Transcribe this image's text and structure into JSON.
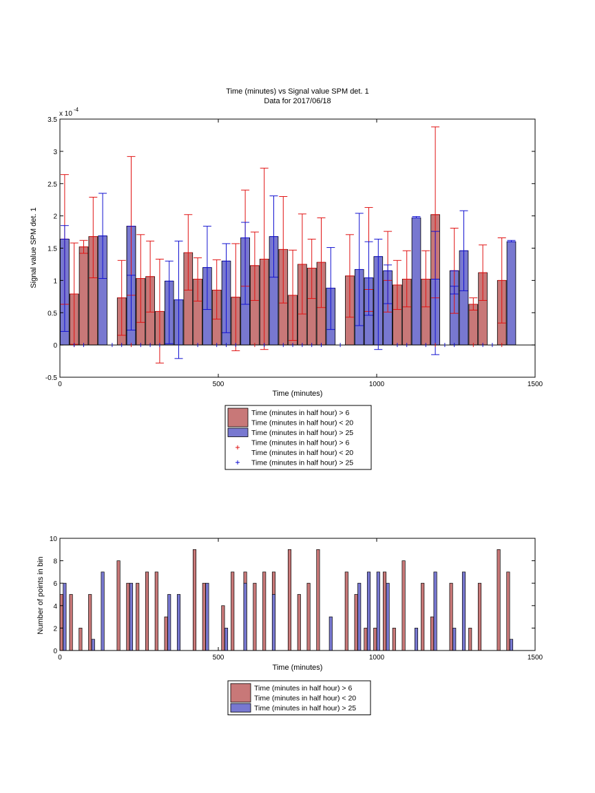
{
  "colors": {
    "red_bar": "#c87878",
    "blue_bar": "#7878d0",
    "red_err": "#e01010",
    "blue_err": "#1010d0"
  },
  "chart_data": [
    {
      "type": "bar",
      "title": "Time (minutes) vs Signal value SPM det. 1",
      "subtitle": "Data for 2017/06/18",
      "xlabel": "Time (minutes)",
      "ylabel": "Signal value SPM det. 1",
      "exponent_label": "x 10",
      "exponent_power": "-4",
      "xlim": [
        0,
        1500
      ],
      "ylim": [
        -0.5,
        3.5
      ],
      "xticks": [
        "0",
        "500",
        "1000",
        "1500"
      ],
      "yticks": [
        "-0.5",
        "0",
        "0.5",
        "1",
        "1.5",
        "2",
        "2.5",
        "3",
        "3.5"
      ],
      "legend": {
        "placement": "below",
        "entries": [
          {
            "kind": "bar",
            "color": "red",
            "lines": [
              "Time (minutes in half hour) > 6",
              "Time (minutes in half hour) < 20"
            ]
          },
          {
            "kind": "bar",
            "color": "blue",
            "lines": [
              "Time (minutes in half hour) > 25"
            ]
          },
          {
            "kind": "marker",
            "color": "red",
            "lines": [
              "Time (minutes in half hour) > 6",
              "Time (minutes in half hour) < 20"
            ]
          },
          {
            "kind": "marker",
            "color": "blue",
            "lines": [
              "Time (minutes in half hour) > 25"
            ]
          }
        ]
      },
      "series": [
        {
          "color": "red",
          "x": [
            15,
            45,
            75,
            105,
            195,
            225,
            255,
            285,
            315,
            405,
            435,
            495,
            555,
            585,
            615,
            645,
            705,
            735,
            765,
            795,
            825,
            915,
            975,
            1035,
            1065,
            1095,
            1155,
            1185,
            1245,
            1305,
            1335,
            1395
          ],
          "values": [
            1.64,
            0.79,
            1.52,
            1.68,
            0.73,
            1.84,
            1.03,
            1.06,
            0.52,
            1.43,
            1.02,
            0.85,
            0.74,
            1.66,
            1.23,
            1.33,
            1.48,
            0.77,
            1.25,
            1.19,
            1.28,
            1.07,
            0.86,
            1.0,
            0.93,
            1.02,
            1.02,
            2.02,
            1.15,
            0.63,
            1.12,
            1.0
          ],
          "err_low": [
            0.63,
            0.01,
            1.42,
            1.04,
            0.15,
            0.77,
            0.35,
            0.51,
            -0.28,
            0.85,
            0.68,
            0.4,
            -0.09,
            0.91,
            0.69,
            -0.07,
            0.65,
            0.07,
            0.48,
            0.72,
            0.58,
            0.43,
            0.52,
            0.51,
            0.55,
            0.59,
            0.59,
            0.73,
            0.49,
            0.54,
            0.69,
            0.34
          ],
          "err_high": [
            2.64,
            1.58,
            1.62,
            2.29,
            1.31,
            2.92,
            1.71,
            1.61,
            1.33,
            2.02,
            1.35,
            1.32,
            1.57,
            2.4,
            1.75,
            2.74,
            2.3,
            1.47,
            2.03,
            1.64,
            1.97,
            1.71,
            2.13,
            1.76,
            1.31,
            1.46,
            1.46,
            3.38,
            1.81,
            0.73,
            1.55,
            1.66
          ]
        },
        {
          "color": "blue",
          "x": [
            15,
            135,
            225,
            345,
            375,
            465,
            525,
            585,
            675,
            855,
            945,
            975,
            1005,
            1035,
            1125,
            1185,
            1245,
            1275,
            1425
          ],
          "values": [
            1.64,
            1.69,
            1.84,
            0.99,
            0.7,
            1.2,
            1.3,
            1.66,
            1.68,
            0.88,
            1.17,
            1.04,
            1.37,
            1.15,
            1.97,
            1.02,
            1.15,
            1.46,
            1.6
          ],
          "err_low": [
            0.21,
            1.03,
            0.23,
            0.02,
            -0.21,
            0.55,
            0.19,
            0.63,
            1.05,
            0.24,
            0.3,
            0.46,
            -0.07,
            0.64,
            1.97,
            -0.15,
            0.79,
            0.84,
            1.6
          ],
          "err_high": [
            1.85,
            2.35,
            1.08,
            1.3,
            1.61,
            1.84,
            1.57,
            1.9,
            2.31,
            1.51,
            2.04,
            1.6,
            1.64,
            1.24,
            1.99,
            1.76,
            0.91,
            2.08,
            1.62
          ]
        }
      ],
      "zero_markers": {
        "red": [
          45,
          225,
          615,
          1185,
          1305,
          1395
        ],
        "blue": [
          45,
          75,
          165,
          195,
          255,
          285,
          315,
          375,
          435,
          495,
          525,
          555,
          645,
          705,
          735,
          765,
          795,
          825,
          885,
          1065,
          1095,
          1155,
          1215,
          1245,
          1335,
          1365
        ]
      }
    },
    {
      "type": "bar",
      "title": "",
      "xlabel": "Time (minutes)",
      "ylabel": "Number of points in bin",
      "xlim": [
        0,
        1500
      ],
      "ylim": [
        0,
        10
      ],
      "xticks": [
        "0",
        "500",
        "1000",
        "1500"
      ],
      "yticks": [
        "0",
        "2",
        "4",
        "6",
        "8",
        "10"
      ],
      "legend": {
        "placement": "below",
        "entries": [
          {
            "kind": "bar",
            "color": "red",
            "lines": [
              "Time (minutes in half hour) > 6",
              "Time (minutes in half hour) < 20"
            ]
          },
          {
            "kind": "bar",
            "color": "blue",
            "lines": [
              "Time (minutes in half hour) > 25"
            ]
          }
        ]
      },
      "series": [
        {
          "color": "red",
          "x": [
            5,
            35,
            65,
            95,
            185,
            215,
            245,
            275,
            305,
            335,
            425,
            455,
            515,
            545,
            585,
            615,
            645,
            675,
            725,
            755,
            785,
            815,
            905,
            935,
            965,
            995,
            1025,
            1055,
            1085,
            1145,
            1175,
            1235,
            1295,
            1325,
            1385,
            1415
          ],
          "values": [
            5,
            5,
            2,
            5,
            8,
            6,
            6,
            7,
            7,
            3,
            9,
            6,
            4,
            7,
            7,
            6,
            7,
            7,
            9,
            5,
            6,
            9,
            7,
            5,
            2,
            2,
            7,
            2,
            8,
            6,
            3,
            6,
            2,
            6,
            9,
            7
          ]
        },
        {
          "color": "blue",
          "x": [
            15,
            105,
            135,
            225,
            345,
            375,
            465,
            525,
            585,
            675,
            855,
            945,
            975,
            1005,
            1035,
            1125,
            1185,
            1245,
            1275,
            1425
          ],
          "values": [
            6,
            1,
            7,
            6,
            5,
            5,
            6,
            2,
            6,
            5,
            3,
            6,
            7,
            7,
            6,
            2,
            7,
            2,
            7,
            1
          ]
        }
      ]
    }
  ]
}
